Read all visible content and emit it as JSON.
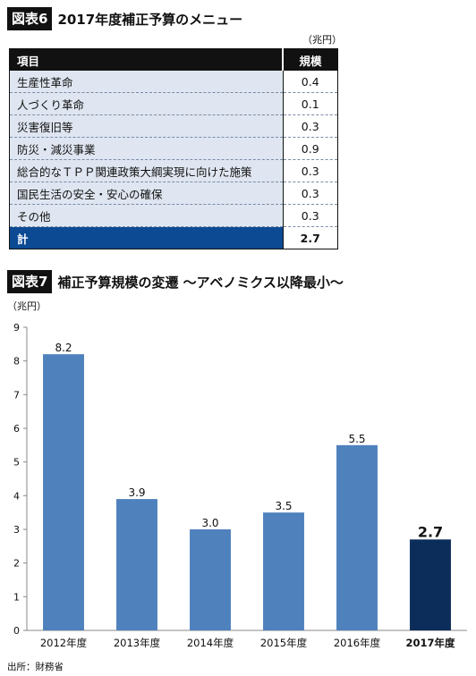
{
  "table_section": {
    "badge": "図表6",
    "title": "2017年度補正予算のメニュー",
    "unit": "（兆円）",
    "header_item": "項目",
    "header_value": "規模",
    "rows": [
      {
        "label": "生産性革命",
        "value": "0.4"
      },
      {
        "label": "人づくり革命",
        "value": "0.1"
      },
      {
        "label": "災害復旧等",
        "value": "0.3"
      },
      {
        "label": "防災・減災事業",
        "value": "0.9"
      },
      {
        "label": "総合的なＴＰＰ関連政策大綱実現に向けた施策",
        "value": "0.3"
      },
      {
        "label": "国民生活の安全・安心の確保",
        "value": "0.3"
      },
      {
        "label": "その他",
        "value": "0.3"
      }
    ],
    "total_label": "計",
    "total_value": "2.7"
  },
  "chart_section": {
    "badge": "図表7",
    "title": "補正予算規模の変遷 〜アベノミクス以降最小〜",
    "unit": "（兆円）"
  },
  "chart_data": {
    "type": "bar",
    "categories": [
      "2012年度",
      "2013年度",
      "2014年度",
      "2015年度",
      "2016年度",
      "2017年度"
    ],
    "values": [
      8.2,
      3.9,
      3.0,
      3.5,
      5.5,
      2.7
    ],
    "data_labels": [
      "8.2",
      "3.9",
      "3.0",
      "3.5",
      "5.5",
      "2.7"
    ],
    "highlight_index": 5,
    "ylim": [
      0,
      9
    ],
    "yticks": [
      0,
      1,
      2,
      3,
      4,
      5,
      6,
      7,
      8,
      9
    ],
    "grid": false,
    "colors": {
      "bar": "#4f81bd",
      "highlight": "#0c2d5a",
      "axis": "#888888"
    }
  },
  "source": "出所：財務省"
}
